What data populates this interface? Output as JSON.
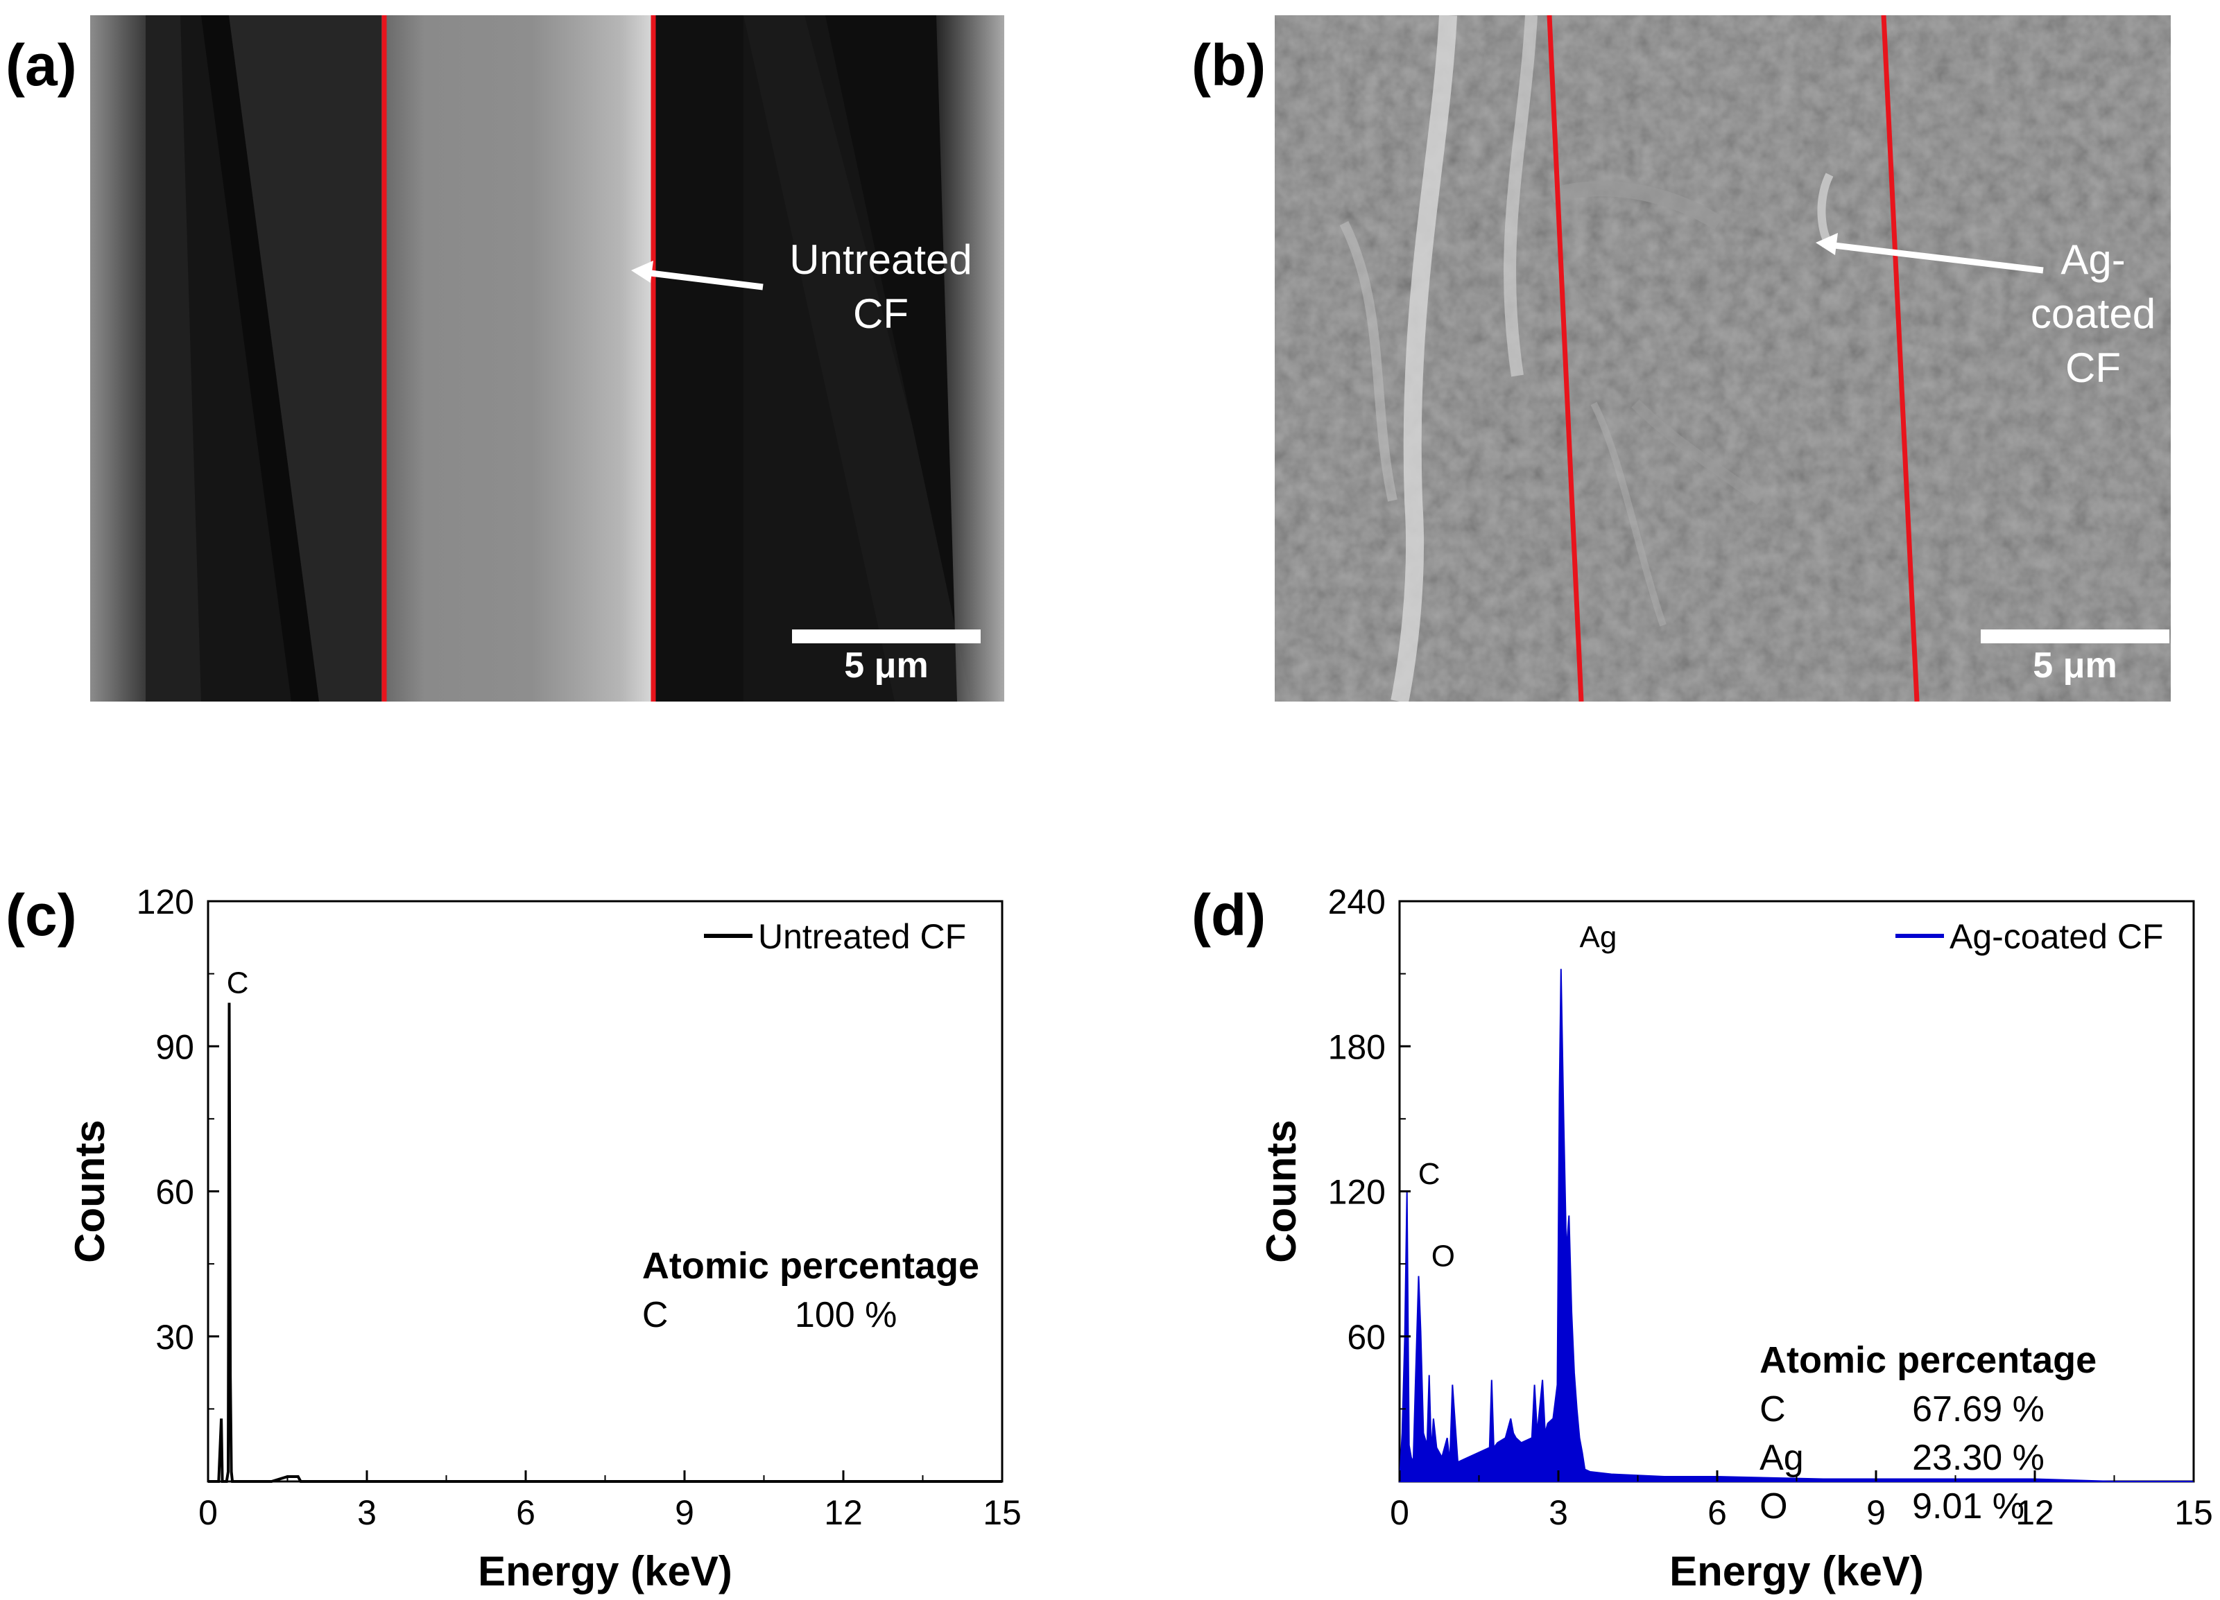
{
  "panels": {
    "a": {
      "label": "(a)",
      "annotation_line1": "Untreated",
      "annotation_line2": "CF",
      "scale_label": "5 μm"
    },
    "b": {
      "label": "(b)",
      "annotation_line1": "Ag-coated",
      "annotation_line2": "CF",
      "scale_label": "5 μm"
    },
    "c": {
      "label": "(c)"
    },
    "d": {
      "label": "(d)"
    }
  },
  "colors": {
    "fiber_outline": "#e8141c",
    "untreated_series": "#000000",
    "ag_series": "#0000d0"
  },
  "chart_data": [
    {
      "type": "line",
      "panel": "c",
      "xlabel": "Energy (keV)",
      "ylabel": "Counts",
      "xlim": [
        0,
        15
      ],
      "ylim": [
        0,
        120
      ],
      "xticks": [
        0,
        3,
        6,
        9,
        12,
        15
      ],
      "yticks": [
        30,
        60,
        90,
        120
      ],
      "legend": "top-right",
      "series": [
        {
          "name": "Untreated CF",
          "x": [
            0,
            0.1,
            0.15,
            0.2,
            0.25,
            0.27,
            0.3,
            0.35,
            0.38,
            0.4,
            0.42,
            0.44,
            0.46,
            0.5,
            0.6,
            0.8,
            1.2,
            1.5,
            1.7,
            1.75,
            1.8,
            2.5,
            5,
            10,
            15
          ],
          "values": [
            0,
            0,
            0,
            0,
            13,
            0,
            0,
            0,
            2,
            99,
            22,
            2,
            0,
            0,
            0,
            0,
            0,
            1,
            1,
            0,
            0,
            0,
            0,
            0,
            0
          ]
        }
      ],
      "annotations": [
        {
          "text": "C",
          "x": 0.35,
          "y": 101
        }
      ],
      "table": {
        "title": "Atomic percentage",
        "rows": [
          {
            "element": "C",
            "value": "100 %"
          }
        ]
      }
    },
    {
      "type": "area",
      "panel": "d",
      "xlabel": "Energy (keV)",
      "ylabel": "Counts",
      "xlim": [
        0,
        15
      ],
      "ylim": [
        0,
        240
      ],
      "xticks": [
        0,
        3,
        6,
        9,
        12,
        15
      ],
      "yticks": [
        60,
        120,
        180,
        240
      ],
      "legend": "top-right",
      "series": [
        {
          "name": "Ag-coated CF",
          "x": [
            0,
            0.05,
            0.1,
            0.14,
            0.18,
            0.22,
            0.26,
            0.3,
            0.36,
            0.4,
            0.45,
            0.52,
            0.56,
            0.6,
            0.64,
            0.7,
            0.8,
            0.9,
            0.95,
            1.0,
            1.1,
            1.3,
            1.5,
            1.7,
            1.74,
            1.78,
            1.85,
            2.0,
            2.1,
            2.15,
            2.2,
            2.3,
            2.5,
            2.55,
            2.6,
            2.7,
            2.75,
            2.8,
            2.9,
            2.98,
            3.02,
            3.05,
            3.1,
            3.15,
            3.2,
            3.25,
            3.3,
            3.35,
            3.4,
            3.45,
            3.5,
            3.6,
            4.0,
            5.0,
            6.0,
            8.0,
            10.0,
            12.0,
            13.5,
            15.0
          ],
          "values": [
            0,
            20,
            60,
            120,
            15,
            10,
            8,
            40,
            85,
            62,
            20,
            15,
            44,
            12,
            26,
            14,
            10,
            18,
            8,
            40,
            8,
            10,
            12,
            14,
            42,
            14,
            16,
            18,
            26,
            20,
            18,
            16,
            18,
            40,
            20,
            42,
            20,
            24,
            26,
            40,
            160,
            212,
            150,
            95,
            110,
            70,
            45,
            30,
            18,
            12,
            5,
            4,
            3,
            2,
            2,
            1,
            1,
            1,
            0,
            0
          ]
        }
      ],
      "annotations": [
        {
          "text": "C",
          "x": 0.35,
          "y": 123
        },
        {
          "text": "O",
          "x": 0.6,
          "y": 89
        },
        {
          "text": "Ag",
          "x": 3.4,
          "y": 221
        }
      ],
      "table": {
        "title": "Atomic percentage",
        "rows": [
          {
            "element": "C",
            "value": "67.69 %"
          },
          {
            "element": "Ag",
            "value": "23.30 %"
          },
          {
            "element": "O",
            "value": "9.01 %"
          }
        ]
      }
    }
  ]
}
